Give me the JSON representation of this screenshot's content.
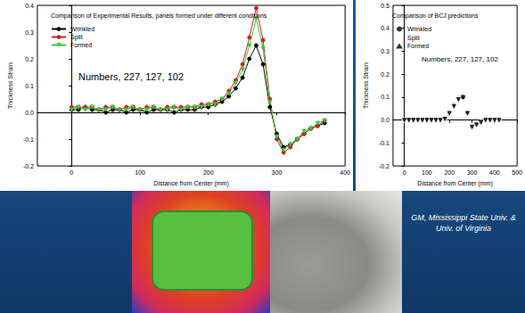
{
  "chart_data": [
    {
      "type": "line",
      "title": "Comparison of Experimental Results, panels formed under different conditions",
      "annotation": "Numbers, 227, 127, 102",
      "x_label": "Distance from Center (mm)",
      "y_label": "Thickness Strain",
      "x": [
        0,
        10,
        20,
        30,
        40,
        50,
        60,
        70,
        80,
        90,
        100,
        110,
        120,
        130,
        140,
        150,
        160,
        170,
        180,
        190,
        200,
        210,
        220,
        230,
        240,
        250,
        260,
        270,
        280,
        290,
        300,
        310,
        320,
        330,
        340,
        350,
        360,
        370
      ],
      "series": [
        {
          "name": "Wrinkled",
          "color": "#000000",
          "marker": "circle",
          "line_style": "solid",
          "values": [
            0.01,
            0.01,
            0.02,
            0.01,
            0.01,
            0.0,
            0.01,
            0.01,
            0.0,
            0.01,
            0.01,
            0.0,
            0.01,
            0.01,
            0.01,
            0.0,
            0.01,
            0.01,
            0.01,
            0.02,
            0.02,
            0.03,
            0.04,
            0.06,
            0.09,
            0.13,
            0.2,
            0.25,
            0.18,
            0.02,
            -0.08,
            -0.13,
            -0.12,
            -0.1,
            -0.08,
            -0.06,
            -0.05,
            -0.04
          ]
        },
        {
          "name": "Split",
          "color": "#cc2222",
          "marker": "circle",
          "line_style": "solid",
          "values": [
            0.02,
            0.02,
            0.02,
            0.02,
            0.01,
            0.02,
            0.02,
            0.01,
            0.02,
            0.02,
            0.01,
            0.02,
            0.02,
            0.01,
            0.02,
            0.02,
            0.02,
            0.02,
            0.02,
            0.03,
            0.03,
            0.04,
            0.05,
            0.08,
            0.12,
            0.18,
            0.28,
            0.39,
            0.27,
            0.05,
            -0.1,
            -0.15,
            -0.13,
            -0.1,
            -0.08,
            -0.06,
            -0.05,
            -0.03
          ]
        },
        {
          "name": "Formed",
          "color": "#33cc33",
          "marker": "triangle_down",
          "line_style": "solid",
          "values": [
            0.01,
            0.02,
            0.01,
            0.02,
            0.01,
            0.01,
            0.02,
            0.01,
            0.01,
            0.02,
            0.01,
            0.01,
            0.02,
            0.01,
            0.01,
            0.02,
            0.01,
            0.02,
            0.02,
            0.02,
            0.03,
            0.03,
            0.05,
            0.07,
            0.11,
            0.16,
            0.25,
            0.35,
            0.24,
            0.04,
            -0.09,
            -0.14,
            -0.12,
            -0.1,
            -0.07,
            -0.06,
            -0.04,
            -0.03
          ]
        }
      ],
      "xlim": [
        -50,
        400
      ],
      "xticks": [
        0,
        100,
        200,
        300,
        400
      ],
      "ylim": [
        -0.2,
        0.4
      ],
      "yticks": [
        -0.2,
        -0.1,
        {
          "value": 0,
          "label": "0.0"
        },
        0.1,
        0.2,
        0.3,
        0.4
      ],
      "grid": false,
      "legend": "upper left"
    },
    {
      "type": "scatter",
      "title": "Comparison of BCJ predictions",
      "annotation": "Numbers, 227, 127, 102",
      "x_label": "Distance from Center (mm)",
      "y_label": "Thickness Strain",
      "x": [
        0,
        20,
        40,
        60,
        80,
        100,
        120,
        140,
        160,
        180,
        200,
        220,
        240,
        260,
        280,
        300,
        320,
        340,
        360,
        380,
        400,
        420
      ],
      "series": [
        {
          "name": "Wrinkled",
          "color": "#000000",
          "marker": "circle",
          "values": [
            0,
            0,
            0,
            0,
            0,
            0,
            0,
            0,
            0,
            0.005,
            0.03,
            0.07,
            0.1,
            0.1,
            0.03,
            -0.03,
            -0.02,
            -0.01,
            0,
            0,
            0,
            0
          ]
        },
        {
          "name": "Split",
          "color": "#000000",
          "marker": "open_circle",
          "values": [
            0,
            0,
            0,
            0,
            0,
            0,
            0,
            0,
            0,
            0.005,
            0.03,
            0.07,
            0.1,
            0.11,
            0.03,
            -0.03,
            -0.02,
            -0.01,
            0,
            0,
            0,
            0
          ]
        },
        {
          "name": "Formed",
          "color": "#000000",
          "marker": "triangle_down",
          "values": [
            0,
            0,
            0,
            0,
            0,
            0,
            0,
            0,
            0,
            0.005,
            0.03,
            0.06,
            0.09,
            0.1,
            0.03,
            -0.03,
            -0.02,
            -0.01,
            0,
            0,
            0,
            0
          ]
        }
      ],
      "xlim": [
        -50,
        500
      ],
      "xticks": [
        0,
        100,
        200,
        300,
        400,
        500
      ],
      "ylim": [
        -0.2,
        0.5
      ],
      "yticks": [
        -0.2,
        -0.1,
        {
          "value": 0,
          "label": "0.0"
        },
        0.1,
        0.2,
        0.3,
        0.4,
        0.5
      ],
      "grid": false,
      "legend": "upper left"
    }
  ],
  "caption": "GM, Mississippi State Univ. & Univ. of Virginia"
}
